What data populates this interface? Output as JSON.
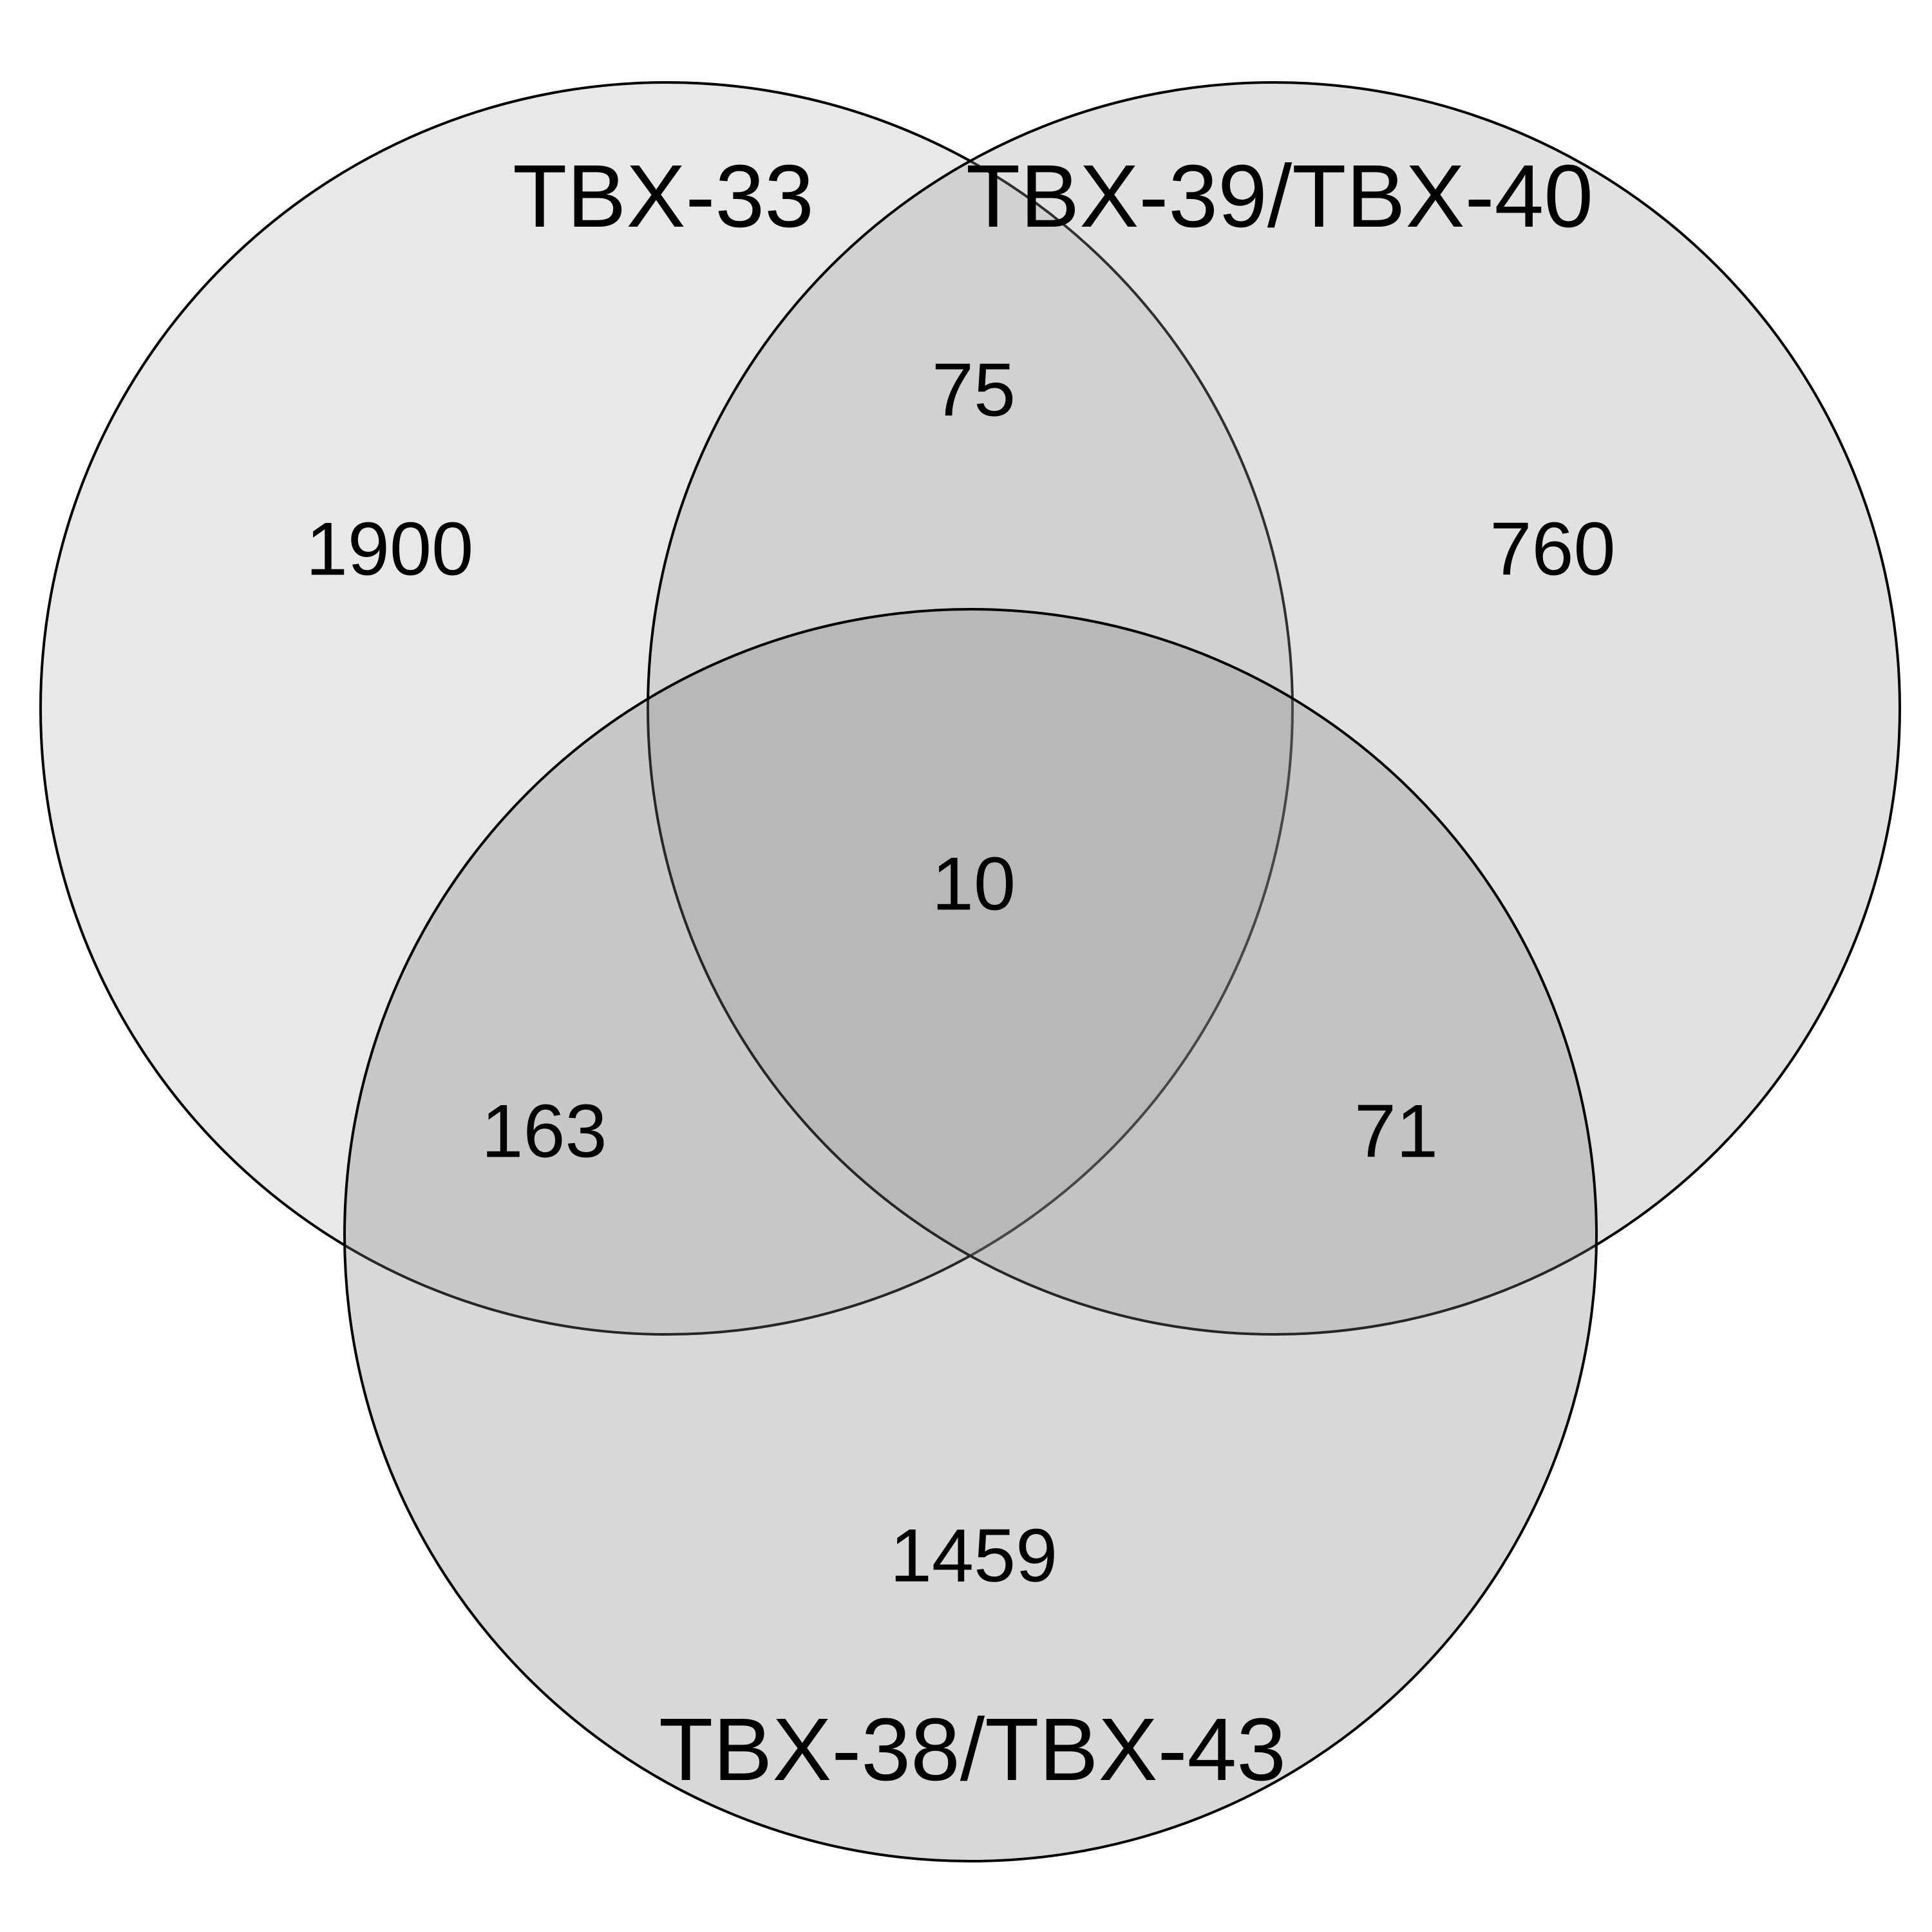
{
  "diagram": {
    "type": "venn",
    "sets": [
      {
        "id": "A",
        "label": "TBX-33",
        "fill": "#b3b3b3"
      },
      {
        "id": "B",
        "label": "TBX-39/TBX-40",
        "fill": "#9a9a9a"
      },
      {
        "id": "C",
        "label": "TBX-38/TBX-43",
        "fill": "#7f7f7f"
      }
    ],
    "regions": {
      "A_only": "1900",
      "B_only": "760",
      "C_only": "1459",
      "A_B": "75",
      "A_C": "163",
      "B_C": "71",
      "A_B_C": "10"
    }
  }
}
